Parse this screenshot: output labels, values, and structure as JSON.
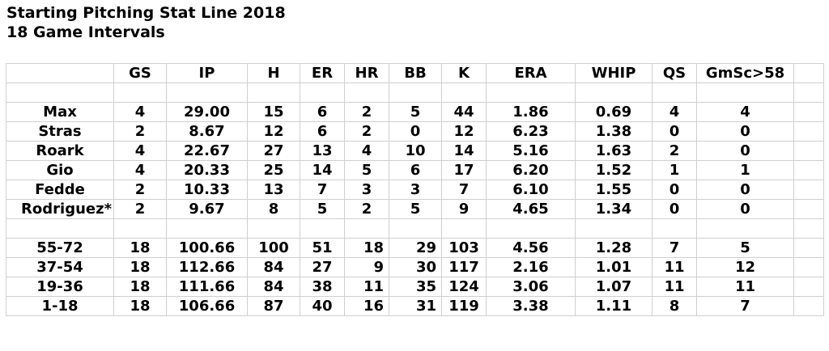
{
  "title": "Starting Pitching Stat Line 2018",
  "subtitle": "18 Game Intervals",
  "columns": [
    "",
    "GS",
    "IP",
    "H",
    "ER",
    "HR",
    "BB",
    "K",
    "ERA",
    "WHIP",
    "QS",
    "GmSc>58"
  ],
  "pitchers": [
    {
      "name": "Max",
      "gs": "4",
      "ip": "29.00",
      "h": "15",
      "er": "6",
      "hr": "2",
      "bb": "5",
      "k": "44",
      "era": "1.86",
      "whip": "0.69",
      "qs": "4",
      "gmsc": "4"
    },
    {
      "name": "Stras",
      "gs": "2",
      "ip": "8.67",
      "h": "12",
      "er": "6",
      "hr": "2",
      "bb": "0",
      "k": "12",
      "era": "6.23",
      "whip": "1.38",
      "qs": "0",
      "gmsc": "0"
    },
    {
      "name": "Roark",
      "gs": "4",
      "ip": "22.67",
      "h": "27",
      "er": "13",
      "hr": "4",
      "bb": "10",
      "k": "14",
      "era": "5.16",
      "whip": "1.63",
      "qs": "2",
      "gmsc": "0"
    },
    {
      "name": "Gio",
      "gs": "4",
      "ip": "20.33",
      "h": "25",
      "er": "14",
      "hr": "5",
      "bb": "6",
      "k": "17",
      "era": "6.20",
      "whip": "1.52",
      "qs": "1",
      "gmsc": "1"
    },
    {
      "name": "Fedde",
      "gs": "2",
      "ip": "10.33",
      "h": "13",
      "er": "7",
      "hr": "3",
      "bb": "3",
      "k": "7",
      "era": "6.10",
      "whip": "1.55",
      "qs": "0",
      "gmsc": "0"
    },
    {
      "name": "Rodriguez*",
      "gs": "2",
      "ip": "9.67",
      "h": "8",
      "er": "5",
      "hr": "2",
      "bb": "5",
      "k": "9",
      "era": "4.65",
      "whip": "1.34",
      "qs": "0",
      "gmsc": "0"
    }
  ],
  "intervals": [
    {
      "name": "55-72",
      "gs": "18",
      "ip": "100.66",
      "h": "100",
      "er": "51",
      "hr": "18",
      "bb": "29",
      "k": "103",
      "era": "4.56",
      "whip": "1.28",
      "qs": "7",
      "gmsc": "5"
    },
    {
      "name": "37-54",
      "gs": "18",
      "ip": "112.66",
      "h": "84",
      "er": "27",
      "hr": "9",
      "bb": "30",
      "k": "117",
      "era": "2.16",
      "whip": "1.01",
      "qs": "11",
      "gmsc": "12"
    },
    {
      "name": "19-36",
      "gs": "18",
      "ip": "111.66",
      "h": "84",
      "er": "38",
      "hr": "11",
      "bb": "35",
      "k": "124",
      "era": "3.06",
      "whip": "1.07",
      "qs": "11",
      "gmsc": "11"
    },
    {
      "name": "1-18",
      "gs": "18",
      "ip": "106.66",
      "h": "87",
      "er": "40",
      "hr": "16",
      "bb": "31",
      "k": "119",
      "era": "3.38",
      "whip": "1.11",
      "qs": "8",
      "gmsc": "7"
    }
  ]
}
